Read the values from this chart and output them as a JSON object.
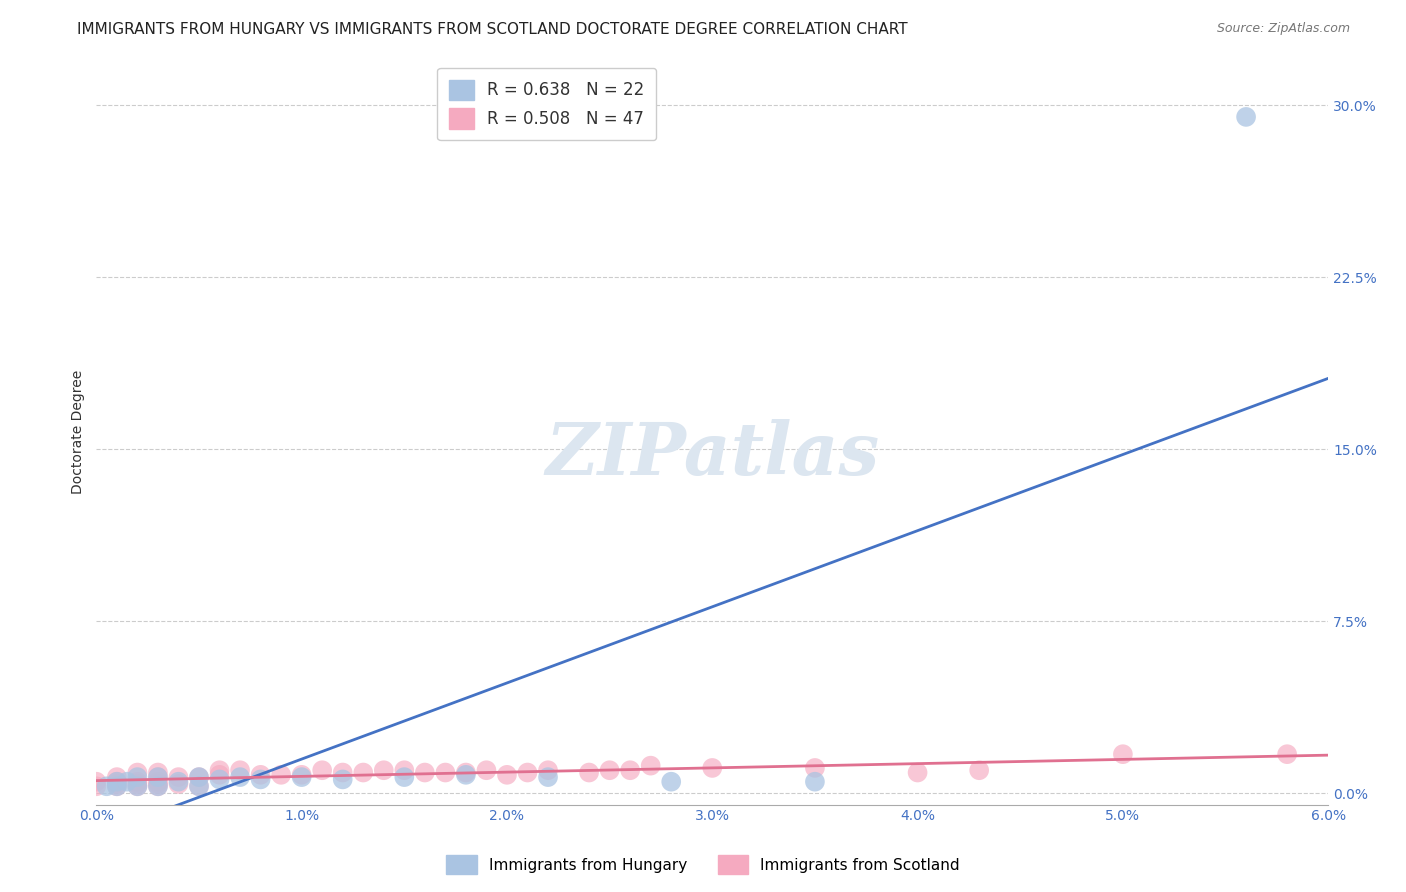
{
  "title": "IMMIGRANTS FROM HUNGARY VS IMMIGRANTS FROM SCOTLAND DOCTORATE DEGREE CORRELATION CHART",
  "source": "Source: ZipAtlas.com",
  "ylabel": "Doctorate Degree",
  "xlim": [
    0.0,
    0.06
  ],
  "ylim": [
    -0.005,
    0.32
  ],
  "yticks": [
    0.0,
    0.075,
    0.15,
    0.225,
    0.3
  ],
  "ytick_labels": [
    "0.0%",
    "7.5%",
    "15.0%",
    "22.5%",
    "30.0%"
  ],
  "xticks": [
    0.0,
    0.01,
    0.02,
    0.03,
    0.04,
    0.05,
    0.06
  ],
  "xtick_labels": [
    "0.0%",
    "1.0%",
    "2.0%",
    "3.0%",
    "4.0%",
    "5.0%",
    "6.0%"
  ],
  "hungary_R": 0.638,
  "hungary_N": 22,
  "scotland_R": 0.508,
  "scotland_N": 47,
  "hungary_color": "#aac4e2",
  "scotland_color": "#f5aac0",
  "hungary_line_color": "#4472c4",
  "scotland_line_color": "#e07090",
  "background_color": "#ffffff",
  "watermark": "ZIPatlas",
  "watermark_color": "#dce6f0",
  "hungary_x": [
    0.0005,
    0.001,
    0.001,
    0.0015,
    0.002,
    0.002,
    0.003,
    0.003,
    0.004,
    0.005,
    0.005,
    0.006,
    0.007,
    0.008,
    0.01,
    0.012,
    0.015,
    0.018,
    0.022,
    0.028,
    0.035,
    0.056
  ],
  "hungary_y": [
    0.003,
    0.003,
    0.005,
    0.005,
    0.003,
    0.007,
    0.003,
    0.007,
    0.005,
    0.003,
    0.007,
    0.006,
    0.007,
    0.006,
    0.007,
    0.006,
    0.007,
    0.008,
    0.007,
    0.005,
    0.005,
    0.295
  ],
  "scotland_x": [
    0.0,
    0.0,
    0.001,
    0.001,
    0.001,
    0.001,
    0.002,
    0.002,
    0.002,
    0.002,
    0.003,
    0.003,
    0.003,
    0.003,
    0.003,
    0.004,
    0.004,
    0.005,
    0.005,
    0.006,
    0.006,
    0.007,
    0.008,
    0.009,
    0.01,
    0.011,
    0.012,
    0.013,
    0.014,
    0.015,
    0.016,
    0.017,
    0.018,
    0.019,
    0.02,
    0.021,
    0.022,
    0.024,
    0.025,
    0.026,
    0.027,
    0.03,
    0.035,
    0.04,
    0.043,
    0.05,
    0.058
  ],
  "scotland_y": [
    0.003,
    0.005,
    0.003,
    0.004,
    0.005,
    0.007,
    0.003,
    0.004,
    0.005,
    0.009,
    0.003,
    0.004,
    0.005,
    0.007,
    0.009,
    0.004,
    0.007,
    0.003,
    0.007,
    0.008,
    0.01,
    0.01,
    0.008,
    0.008,
    0.008,
    0.01,
    0.009,
    0.009,
    0.01,
    0.01,
    0.009,
    0.009,
    0.009,
    0.01,
    0.008,
    0.009,
    0.01,
    0.009,
    0.01,
    0.01,
    0.012,
    0.011,
    0.011,
    0.009,
    0.01,
    0.017,
    0.017
  ],
  "title_fontsize": 11,
  "axis_label_fontsize": 10,
  "tick_fontsize": 10,
  "legend_fontsize": 12,
  "watermark_fontsize": 52
}
